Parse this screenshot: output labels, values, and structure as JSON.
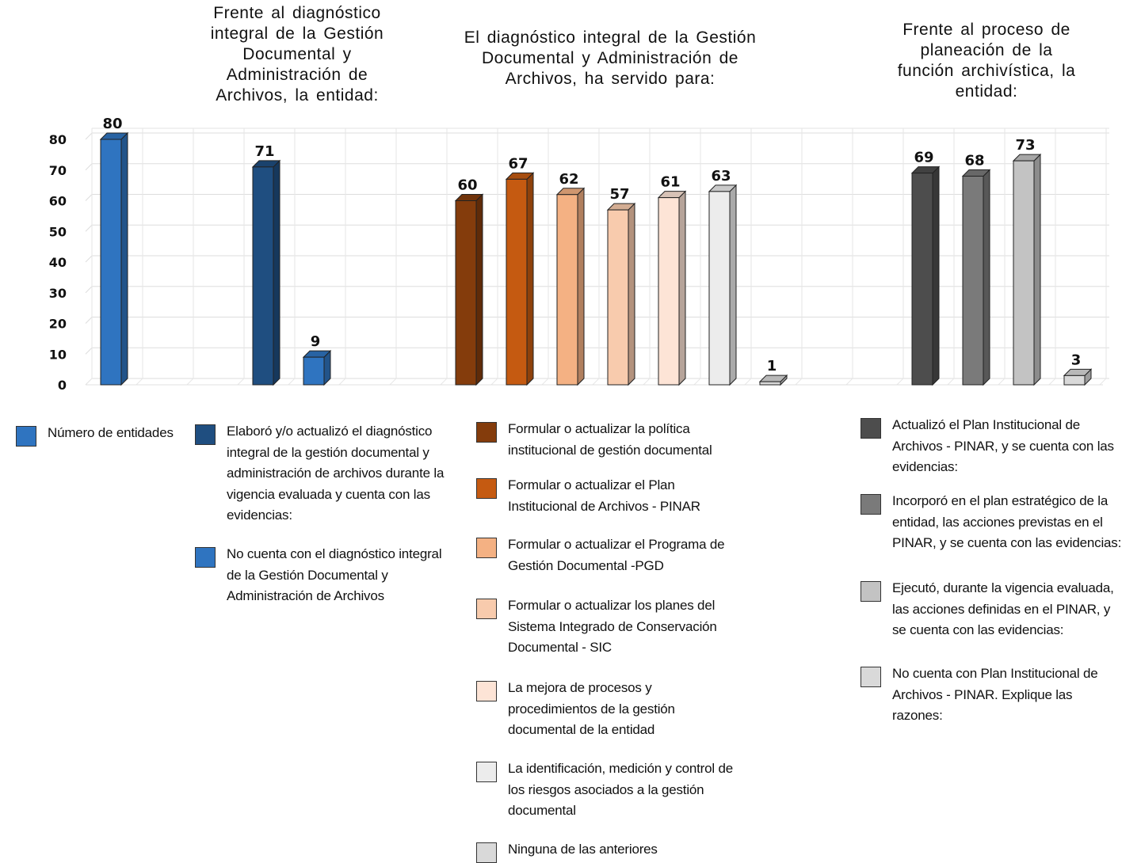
{
  "chart_data": {
    "type": "bar",
    "y_axis": {
      "min": 0,
      "max": 80,
      "ticks": [
        "0",
        "10",
        "20",
        "30",
        "40",
        "50",
        "60",
        "70",
        "80"
      ]
    },
    "grid": true,
    "groups": [
      {
        "title": "Frente al diagnóstico integral de la Gestión Documental y Administración de Archivos, la entidad:",
        "title_lines": [
          "Frente al diagnóstico",
          "integral de la Gestión",
          "Documental y",
          "Administración de",
          "Archivos, la entidad:"
        ]
      },
      {
        "title": "El diagnóstico integral de la Gestión Documental y Administración de Archivos, ha servido para:",
        "title_lines": [
          "El diagnóstico integral de la Gestión",
          "Documental y Administración de",
          "Archivos, ha servido para:"
        ]
      },
      {
        "title": "Frente al proceso de planeación de la función archivística, la entidad:",
        "title_lines": [
          "Frente al proceso de",
          "planeación de la",
          "función archivística, la",
          "entidad:"
        ]
      }
    ],
    "series": [
      {
        "name": "Número de entidades",
        "value": 80,
        "label": "80",
        "color": "#2f74c0",
        "group": 0,
        "slot": 0
      },
      {
        "name": "Elaboró y/o actualizó el diagnóstico integral de la gestión documental y administración de archivos durante la vigencia evaluada y cuenta con las evidencias:",
        "value": 71,
        "label": "71",
        "color": "#1f4e80",
        "group": 0,
        "slot": 3
      },
      {
        "name": "No cuenta con el diagnóstico integral de la Gestión Documental y Administración de Archivos",
        "value": 9,
        "label": "9",
        "color": "#2f74c0",
        "group": 0,
        "slot": 4
      },
      {
        "name": "Formular o actualizar la política institucional de gestión documental",
        "value": 60,
        "label": "60",
        "color": "#843c0c",
        "group": 1,
        "slot": 7
      },
      {
        "name": "Formular o actualizar el Plan Institucional de Archivos - PINAR",
        "value": 67,
        "label": "67",
        "color": "#c55a11",
        "group": 1,
        "slot": 8
      },
      {
        "name": "Formular o actualizar el Programa de Gestión Documental -PGD",
        "value": 62,
        "label": "62",
        "color": "#f4b183",
        "group": 1,
        "slot": 9
      },
      {
        "name": "Formular o actualizar los planes del Sistema Integrado de Conservación Documental - SIC",
        "value": 57,
        "label": "57",
        "color": "#f8cbad",
        "group": 1,
        "slot": 10
      },
      {
        "name": "La mejora de procesos y procedimientos de la gestión documental de la entidad",
        "value": 61,
        "label": "61",
        "color": "#fde4d6",
        "group": 1,
        "slot": 11
      },
      {
        "name": "La identificación, medición y control de los riesgos asociados a la gestión documental",
        "value": 63,
        "label": "63",
        "color": "#ececec",
        "group": 1,
        "slot": 12
      },
      {
        "name": "Ninguna de las anteriores",
        "value": 1,
        "label": "1",
        "color": "#d9d9d9",
        "group": 1,
        "slot": 13
      },
      {
        "name": "Actualizó el Plan Institucional de Archivos - PINAR, y se cuenta con las evidencias:",
        "value": 69,
        "label": "69",
        "color": "#4d4d4d",
        "group": 2,
        "slot": 16
      },
      {
        "name": "Incorporó en el plan estratégico de la entidad, las acciones previstas en el PINAR, y se cuenta con las evidencias:",
        "value": 68,
        "label": "68",
        "color": "#7a7a7a",
        "group": 2,
        "slot": 17
      },
      {
        "name": "Ejecutó, durante la vigencia evaluada, las acciones definidas en el PINAR, y se cuenta con las evidencias:",
        "value": 73,
        "label": "73",
        "color": "#c3c3c3",
        "group": 2,
        "slot": 18
      },
      {
        "name": "No cuenta con Plan Institucional de Archivos - PINAR. Explique las razones:",
        "value": 3,
        "label": "3",
        "color": "#d9d9d9",
        "group": 2,
        "slot": 19
      }
    ]
  },
  "legend": [
    {
      "lines": [
        "Número de entidades"
      ],
      "color": "#2f74c0"
    },
    {
      "lines": [
        "Elaboró  y/o actualizó el diagnóstico",
        "integral de la gestión documental y",
        "administración de archivos durante la",
        "vigencia evaluada y cuenta con las",
        "evidencias:"
      ],
      "color": "#1f4e80"
    },
    {
      "lines": [
        "No cuenta con el diagnóstico integral",
        "de la Gestión Documental y",
        "Administración de Archivos"
      ],
      "color": "#2f74c0"
    },
    {
      "lines": [
        "Formular o actualizar la política",
        "institucional de gestión documental"
      ],
      "color": "#843c0c"
    },
    {
      "lines": [
        "Formular o actualizar el Plan",
        "Institucional de Archivos - PINAR"
      ],
      "color": "#c55a11"
    },
    {
      "lines": [
        "Formular o actualizar el Programa de",
        "Gestión Documental -PGD"
      ],
      "color": "#f4b183"
    },
    {
      "lines": [
        "Formular o actualizar los planes del",
        "Sistema Integrado de Conservación",
        "Documental - SIC"
      ],
      "color": "#f8cbad"
    },
    {
      "lines": [
        "La mejora de procesos y",
        "procedimientos de la gestión",
        "documental de la entidad"
      ],
      "color": "#fde4d6"
    },
    {
      "lines": [
        "La identificación, medición y control de",
        "los riesgos asociados a la gestión",
        "documental"
      ],
      "color": "#ececec"
    },
    {
      "lines": [
        "Ninguna de las anteriores"
      ],
      "color": "#d9d9d9"
    },
    {
      "lines": [
        "Actualizó el Plan Institucional de",
        "Archivos - PINAR, y se cuenta con las",
        "evidencias:"
      ],
      "color": "#4d4d4d"
    },
    {
      "lines": [
        "Incorporó en el plan estratégico de la",
        "entidad, las acciones previstas en el",
        "PINAR, y se cuenta con las evidencias:"
      ],
      "color": "#7a7a7a"
    },
    {
      "lines": [
        "Ejecutó, durante la vigencia evaluada,",
        "las acciones definidas en el PINAR, y",
        "se cuenta con las evidencias:"
      ],
      "color": "#c3c3c3"
    },
    {
      "lines": [
        "No cuenta con Plan Institucional de",
        "Archivos - PINAR. Explique las",
        "razones:"
      ],
      "color": "#d9d9d9"
    }
  ]
}
